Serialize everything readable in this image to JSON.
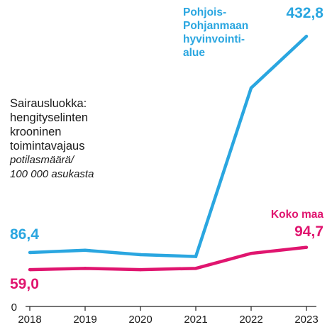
{
  "description": {
    "lines": [
      "Sairausluokka:",
      "hengityselinten",
      "krooninen",
      "toimintavajaus"
    ],
    "unit_lines": [
      "potilasmäärä/",
      "100 000 asukasta"
    ]
  },
  "chart_data": {
    "type": "line",
    "x": [
      2018,
      2019,
      2020,
      2021,
      2022,
      2023
    ],
    "ylim": [
      0,
      450
    ],
    "yticks": [
      0
    ],
    "grid": false,
    "series": [
      {
        "name_lines": [
          "Pohjois-",
          "Pohjanmaan",
          "hyvinvointi-",
          "alue"
        ],
        "color": "#2aa6e0",
        "values": [
          86.4,
          90,
          83,
          80,
          350,
          432.8
        ],
        "start_label": "86,4",
        "end_label": "432,8"
      },
      {
        "name_lines": [
          "Koko maa"
        ],
        "color": "#e0156f",
        "values": [
          59.0,
          61,
          59,
          61,
          85,
          94.7
        ],
        "start_label": "59,0",
        "end_label": "94,7"
      }
    ]
  }
}
